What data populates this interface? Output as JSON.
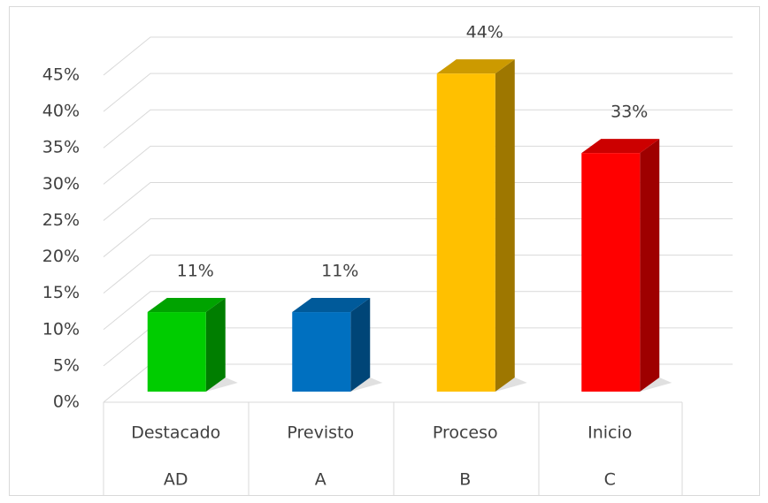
{
  "chart_data": {
    "type": "bar3d",
    "categories": [
      "Destacado",
      "Previsto",
      "Proceso",
      "Inicio"
    ],
    "subcategories": [
      "AD",
      "A",
      "B",
      "C"
    ],
    "values": [
      11,
      11,
      44,
      33
    ],
    "value_labels": [
      "11%",
      "11%",
      "44%",
      "33%"
    ],
    "colors": [
      "#00cc00",
      "#0070c0",
      "#ffc000",
      "#ff0000"
    ],
    "ylim": [
      0,
      45
    ],
    "yticks": [
      {
        "value": 0,
        "label": "0%"
      },
      {
        "value": 5,
        "label": "5%"
      },
      {
        "value": 10,
        "label": "10%"
      },
      {
        "value": 15,
        "label": "15%"
      },
      {
        "value": 20,
        "label": "20%"
      },
      {
        "value": 25,
        "label": "25%"
      },
      {
        "value": 30,
        "label": "30%"
      },
      {
        "value": 35,
        "label": "35%"
      },
      {
        "value": 40,
        "label": "40%"
      },
      {
        "value": 45,
        "label": "45%"
      }
    ],
    "grid": true
  }
}
